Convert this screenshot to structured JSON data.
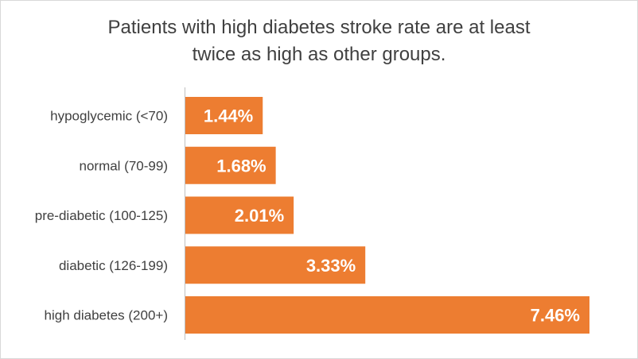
{
  "title_lines": [
    "Patients with high diabetes stroke rate are at least",
    "twice as high as other groups."
  ],
  "colors": {
    "bar": "#ED7D31",
    "axis": "#bfbfbf",
    "text": "#404040",
    "label": "#ffffff"
  },
  "chart_data": {
    "type": "bar",
    "orientation": "horizontal",
    "title": "Patients with high diabetes stroke rate are at least twice as high as other groups.",
    "categories": [
      "hypoglycemic (<70)",
      "normal (70-99)",
      "pre-diabetic (100-125)",
      "diabetic (126-199)",
      "high diabetes (200+)"
    ],
    "values": [
      1.44,
      1.68,
      2.01,
      3.33,
      7.46
    ],
    "data_labels": [
      "1.44%",
      "1.68%",
      "2.01%",
      "3.33%",
      "7.46%"
    ],
    "xlim": [
      0,
      7.46
    ],
    "grid": false,
    "legend": "none"
  }
}
